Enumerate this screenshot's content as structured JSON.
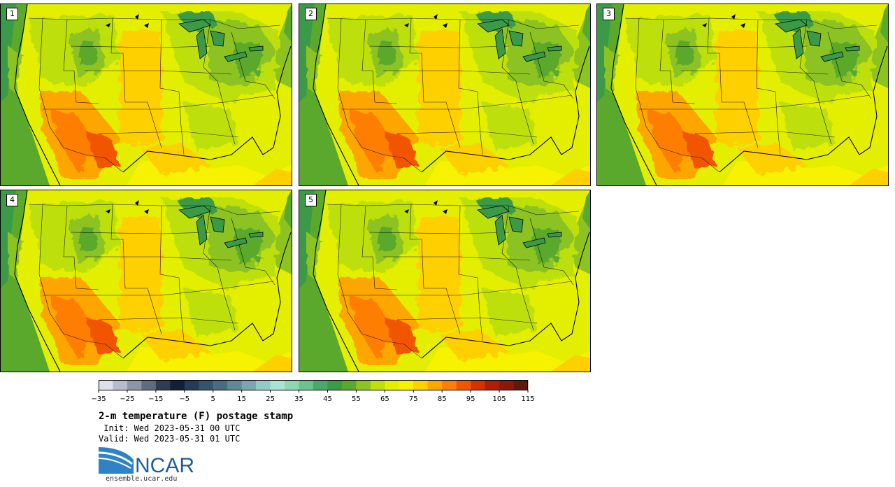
{
  "panels": [
    {
      "label": "1"
    },
    {
      "label": "2"
    },
    {
      "label": "3"
    },
    {
      "label": "4"
    },
    {
      "label": "5"
    }
  ],
  "colorbar": {
    "colors": [
      "#dde0e8",
      "#b6bcc9",
      "#8c95a6",
      "#5f6b80",
      "#2e3c55",
      "#12203a",
      "#243c58",
      "#36536d",
      "#4a6c82",
      "#5f8899",
      "#78a7b0",
      "#94c9c6",
      "#a8e3d4",
      "#8fd6b2",
      "#6cc28d",
      "#4aa86a",
      "#3a9a47",
      "#5aa92c",
      "#8cc320",
      "#bde00e",
      "#e4ef00",
      "#f7f200",
      "#fed000",
      "#fea600",
      "#fd7e05",
      "#f25500",
      "#d43000",
      "#b01e08",
      "#8c1a0c",
      "#5e1a0e"
    ],
    "tick_labels": [
      "−35",
      "−25",
      "−15",
      "−5",
      "5",
      "15",
      "25",
      "35",
      "45",
      "55",
      "65",
      "75",
      "85",
      "95",
      "105",
      "115"
    ]
  },
  "title": "2-m temperature (F) postage stamp",
  "init_line": " Init: Wed 2023-05-31 00 UTC",
  "valid_line": "Valid: Wed 2023-05-31 01 UTC",
  "logo_text": "NCAR",
  "website": "ensemble.ucar.edu"
}
